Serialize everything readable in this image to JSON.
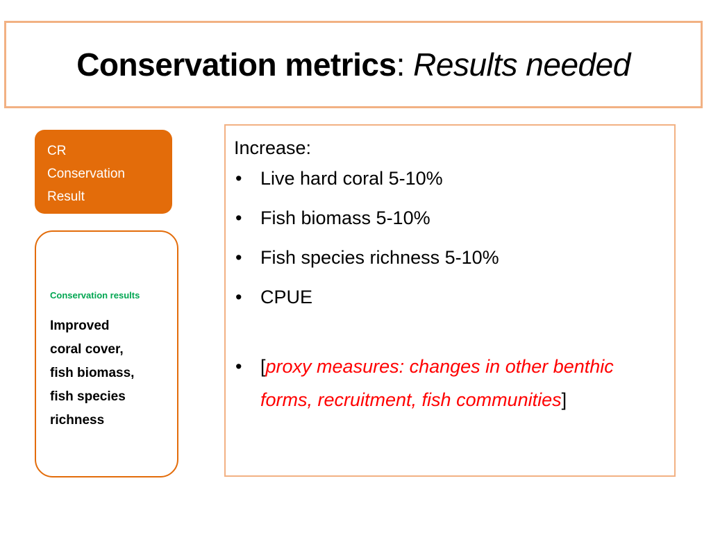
{
  "slide": {
    "title": {
      "bold_part": "Conservation metrics",
      "separator": ": ",
      "italic_part": "Results needed"
    },
    "cr_box": {
      "lines": [
        "CR",
        "Conservation",
        "Result"
      ]
    },
    "results_box": {
      "label": "Conservation results",
      "body_lines": [
        "Improved",
        "coral cover,",
        "fish biomass,",
        "fish species",
        "richness"
      ]
    },
    "content": {
      "heading": "Increase:",
      "bullet_glyph": "•",
      "bullets": [
        "Live hard coral 5-10%",
        "Fish biomass 5-10%",
        "Fish species richness 5-10%",
        "CPUE"
      ],
      "proxy": {
        "open_bracket": "[",
        "text": "proxy measures: changes in other benthic forms, recruitment, fish communities",
        "close_bracket": "]"
      }
    }
  },
  "colors": {
    "accent_orange": "#e36c0a",
    "border_light_orange": "#f2b183",
    "label_green": "#00a651",
    "proxy_red": "#ff0000"
  }
}
